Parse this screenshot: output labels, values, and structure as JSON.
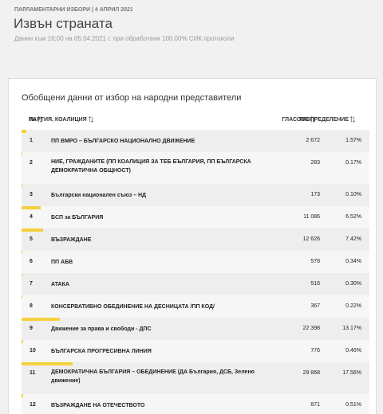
{
  "header": {
    "kicker": "ПАРЛАМЕНТАРНИ ИЗБОРИ | 4 АПРИЛ 2021",
    "title": "Извън страната",
    "subtitle": "Данни към 16:00 на 05.04.2021 г. при обработени 100.00% СИК протоколи"
  },
  "card": {
    "title": "Обобщени данни от избор на народни представители"
  },
  "table": {
    "columns": [
      "№",
      "ПАРТИЯ, КОАЛИЦИЯ",
      "ГЛАСОВЕ",
      "РАЗПРЕДЕЛЕНИЕ"
    ],
    "rows": [
      {
        "no": "1",
        "party": "ПП ВМРО – БЪЛГАРСКО НАЦИОНАЛНО ДВИЖЕНИЕ",
        "votes": "2 672",
        "share": 1.57,
        "share_label": "1.57%"
      },
      {
        "no": "2",
        "party": "НИЕ, ГРАЖДАНИТЕ (ПП КОАЛИЦИЯ ЗА ТЕБ БЪЛГАРИЯ, ПП БЪЛГАРСКА ДЕМОКРАТИЧНА ОБЩНОСТ)",
        "votes": "283",
        "share": 0.17,
        "share_label": "0.17%"
      },
      {
        "no": "3",
        "party": "Български национален съюз – НД",
        "votes": "173",
        "share": 0.1,
        "share_label": "0.10%"
      },
      {
        "no": "4",
        "party": "БСП за БЪЛГАРИЯ",
        "votes": "11 086",
        "share": 6.52,
        "share_label": "6.52%"
      },
      {
        "no": "5",
        "party": "ВЪЗРАЖДАНЕ",
        "votes": "12 626",
        "share": 7.42,
        "share_label": "7.42%"
      },
      {
        "no": "6",
        "party": "ПП АБВ",
        "votes": "578",
        "share": 0.34,
        "share_label": "0.34%"
      },
      {
        "no": "7",
        "party": "АТАКА",
        "votes": "516",
        "share": 0.3,
        "share_label": "0.30%"
      },
      {
        "no": "8",
        "party": "КОНСЕРВАТИВНО ОБЕДИНЕНИЕ НА ДЕСНИЦАТА /ПП КОД/",
        "votes": "367",
        "share": 0.22,
        "share_label": "0.22%"
      },
      {
        "no": "9",
        "party": "Движение за права и свободи - ДПС",
        "votes": "22 398",
        "share": 13.17,
        "share_label": "13.17%"
      },
      {
        "no": "10",
        "party": "БЪЛГАРСКА ПРОГРЕСИВНА ЛИНИЯ",
        "votes": "776",
        "share": 0.46,
        "share_label": "0.46%"
      },
      {
        "no": "11",
        "party": "ДЕМОКРАТИЧНА БЪЛГАРИЯ – ОБЕДИНЕНИЕ (ДА България, ДСБ, Зелено движение)",
        "votes": "29 868",
        "share": 17.56,
        "share_label": "17.56%"
      },
      {
        "no": "12",
        "party": "ВЪЗРАЖДАНЕ НА ОТЕЧЕСТВОТО",
        "votes": "871",
        "share": 0.51,
        "share_label": "0.51%"
      }
    ]
  }
}
